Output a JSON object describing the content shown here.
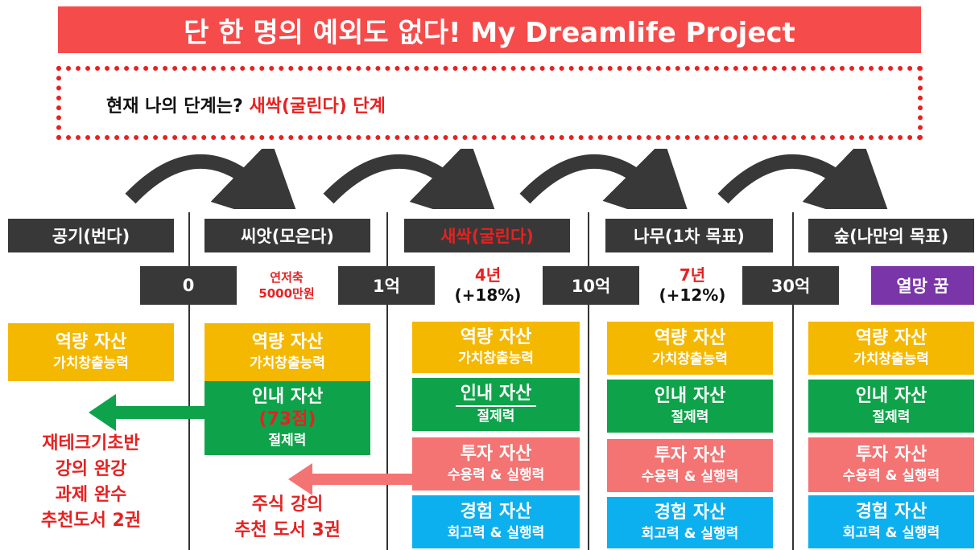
{
  "title": "단 한 명의 예외도 없다! My Dreamlife Project",
  "status": {
    "prefix": "현재 나의 단계는?",
    "highlight": "새싹(굴린다) 단계"
  },
  "stages": [
    "공기(번다)",
    "씨앗(모은다)",
    "새싹(굴린다)",
    "나무(1차 목표)",
    "숲(나만의 목표)"
  ],
  "amounts": [
    "0",
    "1억",
    "10억",
    "30억",
    "열망 꿈"
  ],
  "seed_note": [
    "연저축",
    "5000만원"
  ],
  "durations": [
    {
      "years": "4년",
      "rate": "(+18%)"
    },
    {
      "years": "7년",
      "rate": "(+12%)"
    }
  ],
  "cards": {
    "capability": {
      "title": "역량 자산",
      "sub": "가치창출능력"
    },
    "patience": {
      "title": "인내 자산",
      "score": "(73점)",
      "sub": "절제력"
    },
    "investment": {
      "title": "투자 자산",
      "sub": "수용력 & 실행력"
    },
    "experience": {
      "title": "경험 자산",
      "sub": "회고력 & 실행력"
    }
  },
  "notes": {
    "basics": [
      "재테크기초반",
      "강의 완강",
      "과제 완수",
      "추천도서 2권"
    ],
    "stock": [
      "주식 강의",
      "추천 도서 3권"
    ]
  },
  "colors": {
    "title_bg": "#f64b4b",
    "dark": "#383838",
    "red": "#e52222",
    "purple": "#7a35a8",
    "yellow": "#f5b800",
    "green": "#0ea34a",
    "pink": "#f47373",
    "blue": "#0db0ef"
  }
}
